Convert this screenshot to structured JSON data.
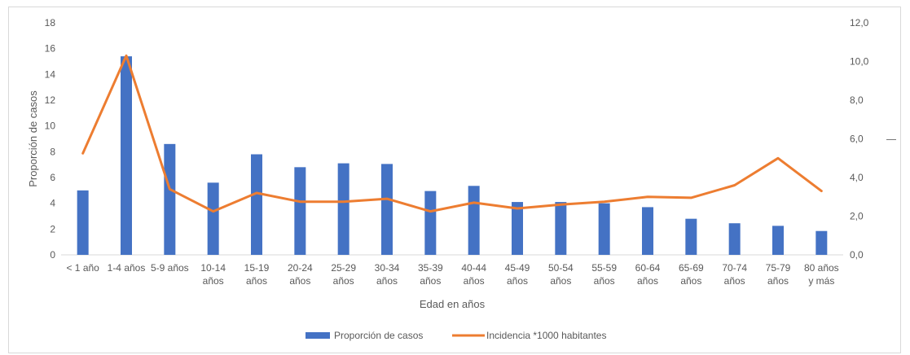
{
  "chart_data": {
    "type": "bar",
    "categories": [
      [
        "< 1 año"
      ],
      [
        "1-4 años"
      ],
      [
        "5-9 años"
      ],
      [
        "10-14",
        "años"
      ],
      [
        "15-19",
        "años"
      ],
      [
        "20-24",
        "años"
      ],
      [
        "25-29",
        "años"
      ],
      [
        "30-34",
        "años"
      ],
      [
        "35-39",
        "años"
      ],
      [
        "40-44",
        "años"
      ],
      [
        "45-49",
        "años"
      ],
      [
        "50-54",
        "años"
      ],
      [
        "55-59",
        "años"
      ],
      [
        "60-64",
        "años"
      ],
      [
        "65-69",
        "años"
      ],
      [
        "70-74",
        "años"
      ],
      [
        "75-79",
        "años"
      ],
      [
        "80 años",
        "y más"
      ]
    ],
    "series": [
      {
        "name": "Proporción de casos",
        "type": "bar",
        "axis": "left",
        "color": "#4472c4",
        "values": [
          5.0,
          15.4,
          8.6,
          5.6,
          7.8,
          6.8,
          7.1,
          7.05,
          4.95,
          5.35,
          4.1,
          4.1,
          4.0,
          3.7,
          2.8,
          2.45,
          2.25,
          1.85
        ]
      },
      {
        "name": "Incidencia  *1000 habitantes",
        "type": "line",
        "axis": "right",
        "color": "#ed7d31",
        "values": [
          5.25,
          10.3,
          3.4,
          2.25,
          3.2,
          2.75,
          2.75,
          2.9,
          2.25,
          2.7,
          2.4,
          2.6,
          2.75,
          3.0,
          2.95,
          3.6,
          5.0,
          3.3
        ]
      }
    ],
    "xlabel": "Edad en años",
    "ylabel": "Proporción de casos",
    "ylim": [
      0,
      18
    ],
    "y_ticks": [
      "0",
      "2",
      "4",
      "6",
      "8",
      "10",
      "12",
      "14",
      "16",
      "18"
    ],
    "y2lim": [
      0,
      12
    ],
    "y2_ticks": [
      "0,0",
      "2,0",
      "4,0",
      "6,0",
      "8,0",
      "10,0",
      "12,0"
    ],
    "y2_label_mark": "—",
    "grid": false,
    "legend_position": "bottom"
  }
}
